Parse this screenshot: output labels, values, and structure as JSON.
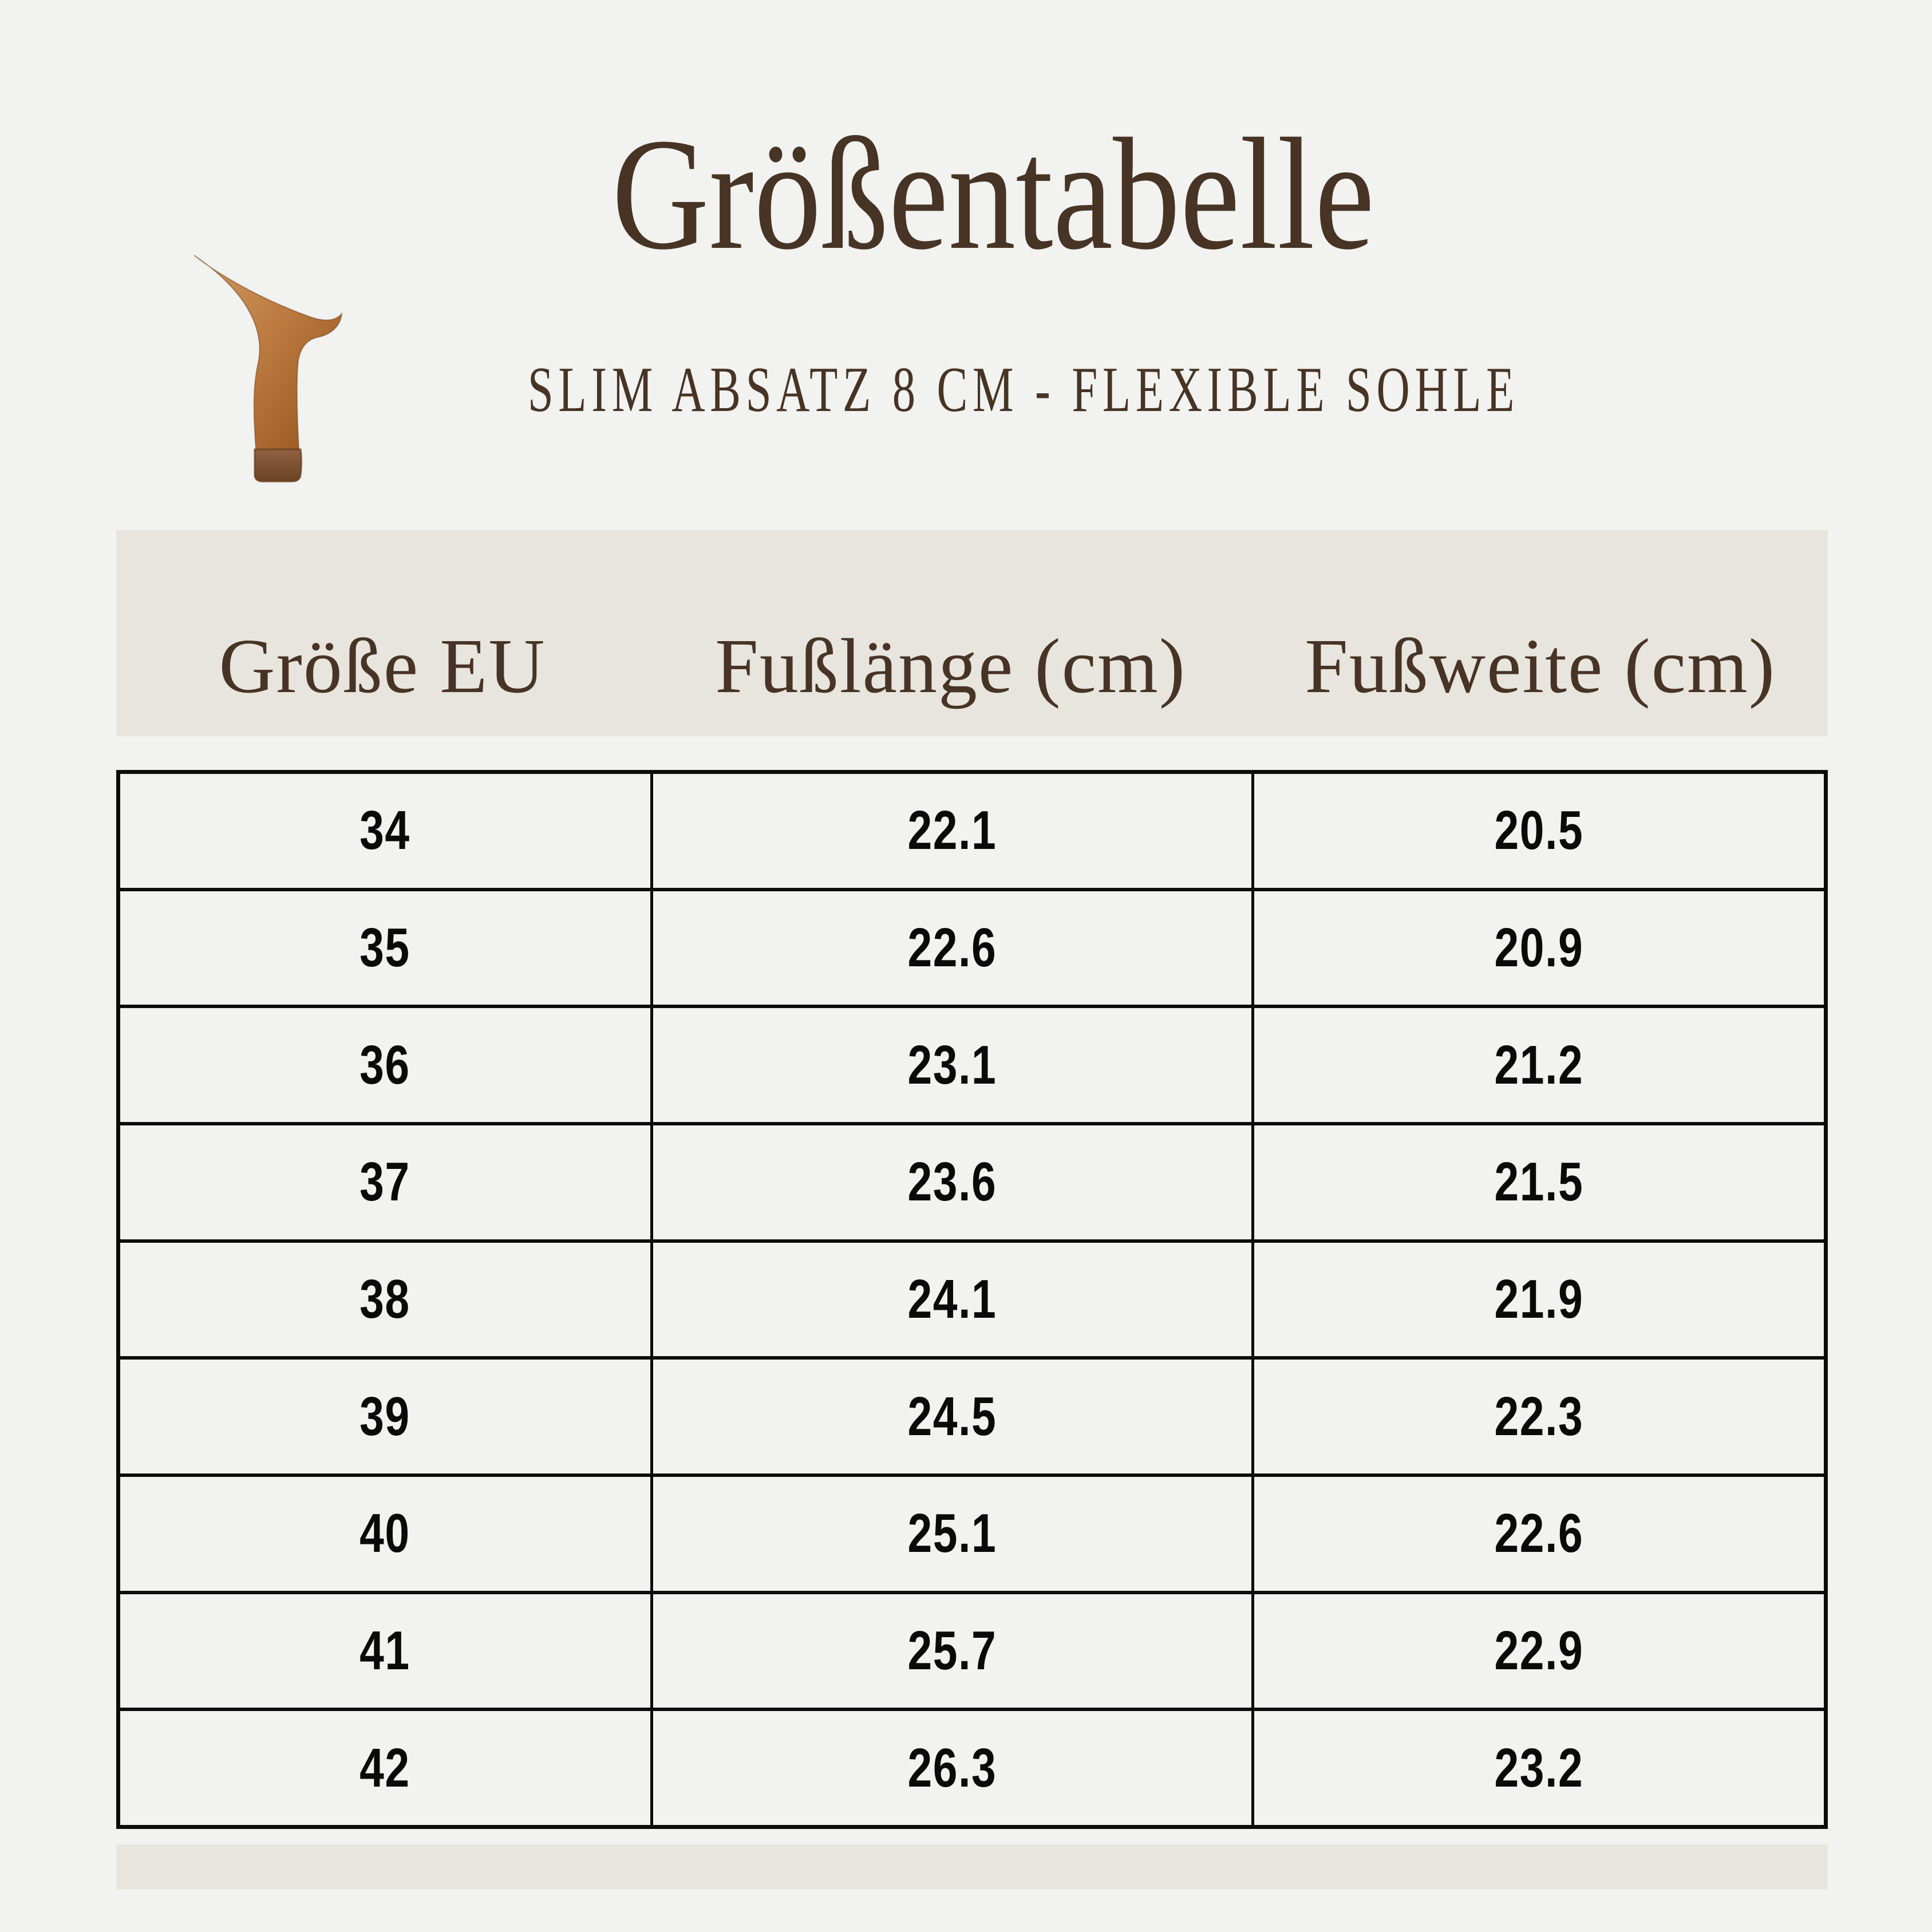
{
  "title": "Größentabelle",
  "subtitle": "SLIM ABSATZ 8 CM - FLEXIBLE SOHLE",
  "icon": {
    "name": "high-heel-icon",
    "gradient_top": "#cf9a60",
    "gradient_mid": "#bb7a3e",
    "gradient_bottom": "#96551f",
    "cap_top": "#8f6242",
    "cap_bottom": "#6b4222",
    "outline": "#6a3c16"
  },
  "colors": {
    "background": "#f2f2f0",
    "header_band": "#e8e4de",
    "brown_text": "#473425",
    "table_border": "#0c0c0c",
    "cell_text": "#0a0a0a"
  },
  "table": {
    "columns": [
      "Größe EU",
      "Fußlänge (cm)",
      "Fußweite (cm)"
    ],
    "rows": [
      [
        "34",
        "22.1",
        "20.5"
      ],
      [
        "35",
        "22.6",
        "20.9"
      ],
      [
        "36",
        "23.1",
        "21.2"
      ],
      [
        "37",
        "23.6",
        "21.5"
      ],
      [
        "38",
        "24.1",
        "21.9"
      ],
      [
        "39",
        "24.5",
        "22.3"
      ],
      [
        "40",
        "25.1",
        "22.6"
      ],
      [
        "41",
        "25.7",
        "22.9"
      ],
      [
        "42",
        "26.3",
        "23.2"
      ]
    ]
  }
}
